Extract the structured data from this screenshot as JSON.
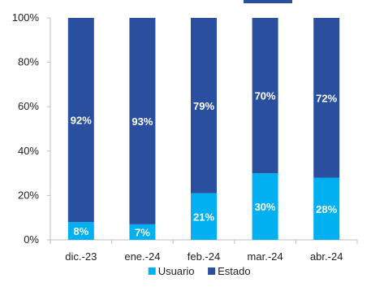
{
  "chart_data": {
    "type": "bar",
    "stacked": true,
    "categories": [
      "dic.-23",
      "ene.-24",
      "feb.-24",
      "mar.-24",
      "abr.-24"
    ],
    "series": [
      {
        "name": "Usuario",
        "values": [
          8,
          7,
          21,
          30,
          28
        ],
        "color": "#00b0f0"
      },
      {
        "name": "Estado",
        "values": [
          92,
          93,
          79,
          70,
          72
        ],
        "color": "#2a4f9e"
      }
    ],
    "ylim": [
      0,
      100
    ],
    "yticks": [
      "0%",
      "20%",
      "40%",
      "60%",
      "80%",
      "100%"
    ],
    "ytick_values": [
      0,
      20,
      40,
      60,
      80,
      100
    ],
    "value_suffix": "%",
    "grid": false,
    "legend": "bottom-center",
    "title": "",
    "xlabel": "",
    "ylabel": ""
  }
}
